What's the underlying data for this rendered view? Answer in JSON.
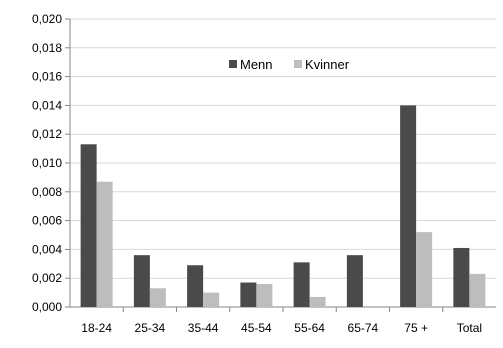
{
  "chart_data": {
    "type": "bar",
    "categories": [
      "18-24",
      "25-34",
      "35-44",
      "45-54",
      "55-64",
      "65-74",
      "75 +",
      "Total"
    ],
    "series": [
      {
        "name": "Menn",
        "color": "#4a4a4a",
        "values": [
          0.0113,
          0.0036,
          0.0029,
          0.0017,
          0.0031,
          0.0036,
          0.014,
          0.0041
        ]
      },
      {
        "name": "Kvinner",
        "color": "#bdbdbd",
        "values": [
          0.0087,
          0.0013,
          0.001,
          0.0016,
          0.0007,
          0.0,
          0.0052,
          0.0023
        ]
      }
    ],
    "ylim": [
      0,
      0.02
    ],
    "yticks": [
      "0,000",
      "0,002",
      "0,004",
      "0,006",
      "0,008",
      "0,010",
      "0,012",
      "0,014",
      "0,016",
      "0,018",
      "0,020"
    ],
    "grid": true,
    "legend_position": "top-center",
    "title": "",
    "xlabel": "",
    "ylabel": ""
  }
}
